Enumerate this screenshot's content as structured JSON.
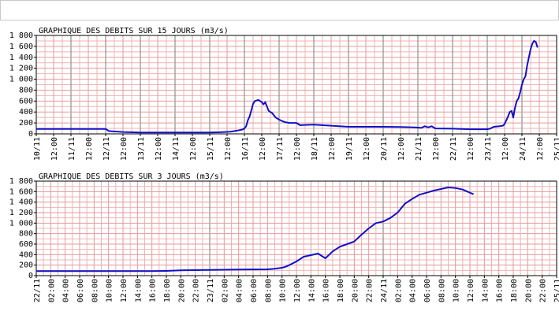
{
  "header": {
    "bar": ""
  },
  "chart_data": [
    {
      "type": "line",
      "title": "GRAPHIQUE DES DEBITS SUR 15 JOURS (m3/s)",
      "ylim": [
        0,
        1800
      ],
      "y_ticks": [
        "0",
        "200",
        "400",
        "600",
        "800",
        "1 000",
        "1 200",
        "1 400",
        "1 600",
        "1 800"
      ],
      "x_tick_labels": [
        "10/11",
        "12:00",
        "11/11",
        "12:00",
        "12/11",
        "12:00",
        "13/11",
        "12:00",
        "14/11",
        "12:00",
        "15/11",
        "12:00",
        "16/11",
        "12:00",
        "17/11",
        "12:00",
        "18/11",
        "12:00",
        "19/11",
        "12:00",
        "20/11",
        "12:00",
        "21/11",
        "12:00",
        "22/11",
        "12:00",
        "23/11",
        "12:00",
        "24/11",
        "12:00",
        "25/11"
      ],
      "x_unit": "days since 10/11 00:00",
      "grid": true,
      "colors": {
        "line": "#1010c8",
        "major_grid": "#7a7a7a",
        "minor_grid": "#f0b4b4",
        "axis": "#000000"
      },
      "series": [
        {
          "x": [
            0,
            1.5,
            2.0,
            2.1,
            2.5,
            3.0,
            4.0,
            5.0,
            5.3,
            5.6,
            5.8,
            5.95,
            6.0,
            6.05,
            6.1,
            6.15,
            6.2,
            6.25,
            6.3,
            6.4,
            6.5,
            6.55,
            6.6,
            6.7,
            6.8,
            6.9,
            7.0,
            7.1,
            7.2,
            7.3,
            7.4,
            7.5,
            7.6,
            8.0,
            9.0,
            10.0,
            10.5,
            10.9,
            11.0,
            11.1,
            11.2,
            11.3,
            11.4,
            11.5,
            12.0,
            12.5,
            13.0,
            13.1,
            13.15,
            13.2,
            13.35,
            13.45,
            13.5,
            13.6,
            13.65,
            13.7,
            13.75,
            13.8,
            13.85,
            13.9,
            13.95,
            14.0,
            14.05,
            14.1,
            14.15,
            14.2,
            14.25,
            14.3,
            14.35,
            14.4,
            14.45
          ],
          "y": [
            90,
            90,
            90,
            50,
            35,
            25,
            25,
            25,
            30,
            40,
            60,
            80,
            100,
            140,
            250,
            320,
            430,
            550,
            600,
            620,
            580,
            540,
            580,
            420,
            380,
            300,
            260,
            230,
            210,
            200,
            200,
            200,
            160,
            170,
            130,
            130,
            125,
            120,
            115,
            110,
            140,
            120,
            140,
            100,
            95,
            85,
            85,
            100,
            120,
            130,
            140,
            150,
            180,
            320,
            400,
            420,
            300,
            480,
            600,
            650,
            760,
            900,
            1000,
            1050,
            1250,
            1400,
            1550,
            1650,
            1700,
            1680,
            1580
          ]
        }
      ]
    },
    {
      "type": "line",
      "title": "GRAPHIQUE DES DEBITS SUR 3 JOURS (m3/s)",
      "ylim": [
        0,
        1800
      ],
      "y_ticks": [
        "0",
        "200",
        "400",
        "600",
        "800",
        "1 000",
        "1 200",
        "1 400",
        "1 600",
        "1 800"
      ],
      "x_tick_labels": [
        "22/11",
        "02:00",
        "04:00",
        "06:00",
        "08:00",
        "10:00",
        "12:00",
        "14:00",
        "16:00",
        "18:00",
        "20:00",
        "22:00",
        "23/11",
        "02:00",
        "04:00",
        "06:00",
        "08:00",
        "10:00",
        "12:00",
        "14:00",
        "16:00",
        "18:00",
        "20:00",
        "22:00",
        "24/11",
        "02:00",
        "04:00",
        "06:00",
        "08:00",
        "10:00",
        "12:00",
        "14:00",
        "16:00",
        "18:00",
        "20:00",
        "22:00",
        "25/11"
      ],
      "x_unit": "hours since 22/11 00:00",
      "grid": true,
      "colors": {
        "line": "#1010c8",
        "major_grid": "#7a7a7a",
        "minor_grid": "#f0b4b4",
        "axis": "#000000"
      },
      "series": [
        {
          "x": [
            0,
            8,
            16,
            18,
            20,
            24,
            28,
            32,
            33,
            34,
            34.5,
            35,
            36,
            37,
            38,
            39,
            40,
            41,
            42,
            43,
            44,
            45,
            46,
            47,
            48,
            49,
            50,
            51,
            52,
            53,
            54,
            55,
            56,
            57,
            58,
            59,
            60,
            60.5
          ],
          "y": [
            85,
            85,
            85,
            90,
            100,
            110,
            115,
            120,
            130,
            150,
            170,
            200,
            270,
            360,
            390,
            420,
            330,
            460,
            550,
            600,
            650,
            780,
            900,
            1000,
            1030,
            1100,
            1200,
            1370,
            1460,
            1540,
            1580,
            1620,
            1650,
            1680,
            1670,
            1640,
            1580,
            1550
          ]
        }
      ]
    }
  ]
}
